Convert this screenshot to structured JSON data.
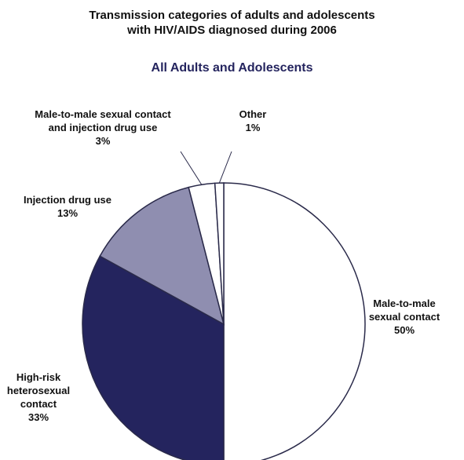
{
  "chart_data": {
    "type": "pie",
    "title": [
      "Transmission categories of adults and adolescents",
      "with HIV/AIDS diagnosed during 2006"
    ],
    "subtitle": "All Adults and Adolescents",
    "slices": [
      {
        "label": [
          "Male-to-male",
          "sexual contact"
        ],
        "value": 50,
        "value_text": "50%",
        "color": "#ffffff"
      },
      {
        "label": [
          "High-risk",
          "heterosexual",
          "contact"
        ],
        "value": 33,
        "value_text": "33%",
        "color": "#24245e"
      },
      {
        "label": [
          "Injection drug use"
        ],
        "value": 13,
        "value_text": "13%",
        "color": "#8f8eb0"
      },
      {
        "label": [
          "Male-to-male sexual contact",
          "and injection drug use"
        ],
        "value": 3,
        "value_text": "3%",
        "color": "#ffffff"
      },
      {
        "label": [
          "Other"
        ],
        "value": 1,
        "value_text": "1%",
        "color": "#ffffff"
      }
    ],
    "colors": {
      "title": "#111111",
      "subtitle": "#24245e",
      "stroke": "#2a2a4a"
    }
  }
}
